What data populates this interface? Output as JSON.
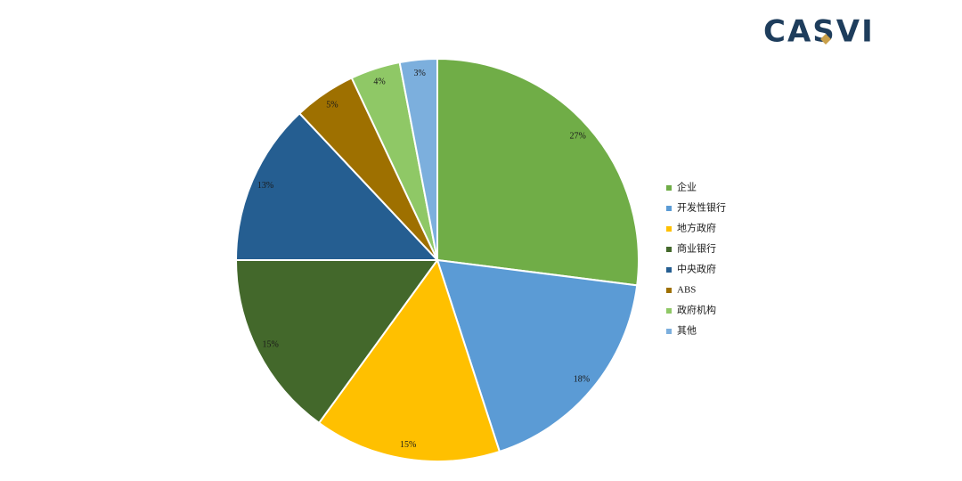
{
  "logo": "CASVI",
  "chart_data": {
    "type": "pie",
    "categories": [
      "企业",
      "开发性银行",
      "地方政府",
      "商业银行",
      "中央政府",
      "ABS",
      "政府机构",
      "其他"
    ],
    "values": [
      27,
      18,
      15,
      15,
      13,
      5,
      4,
      3
    ],
    "value_labels": [
      "27%",
      "18%",
      "15%",
      "15%",
      "13%",
      "5%",
      "4%",
      "3%"
    ],
    "colors": [
      "#70ad47",
      "#5b9bd5",
      "#ffc000",
      "#43682b",
      "#255e91",
      "#9e7000",
      "#8fc866",
      "#7cafdd"
    ],
    "legend": "right"
  }
}
